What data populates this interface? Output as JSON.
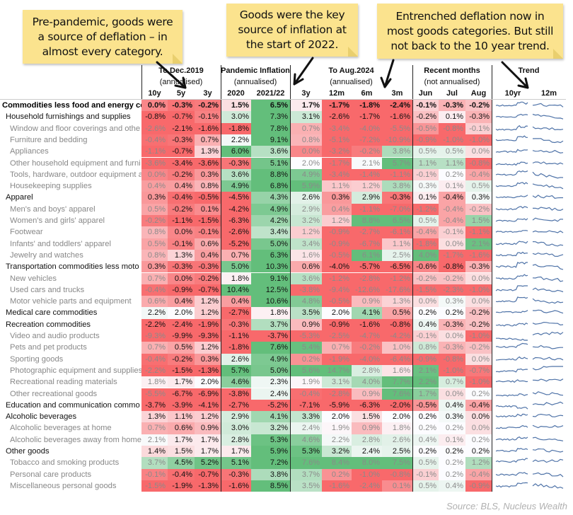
{
  "notes": [
    "Pre-pandemic, goods were a source of deflation – in almost every category.",
    "Goods were the key source of inflation at the start of 2022.",
    "Entrenched deflation now in most goods categories. But still not back to the 10 year trend."
  ],
  "chart_data": {
    "type": "table",
    "title": "",
    "groups": [
      {
        "title": "To Dec.2019",
        "subtitle": "(annualised)"
      },
      {
        "title": "Pandemic Inflation",
        "subtitle": "(annualised)"
      },
      {
        "title": "To Aug.2024",
        "subtitle": "(annualised)"
      },
      {
        "title": "Recent months",
        "subtitle": "(not annualised)"
      },
      {
        "title": "Trend",
        "subtitle": ""
      }
    ],
    "columns": [
      "10y",
      "5y",
      "3y",
      "2020",
      "2021/22",
      "3y",
      "12m",
      "6m",
      "3m",
      "Jun",
      "Jul",
      "Aug"
    ],
    "trend_columns": [
      "10yr",
      "12m"
    ],
    "unit": "%",
    "rows": [
      {
        "label": "Commodities less food and energy comm",
        "level": 0,
        "values": [
          0.0,
          -0.3,
          -0.2,
          1.5,
          6.5,
          1.7,
          -1.7,
          -1.8,
          -2.4,
          -0.1,
          -0.3,
          -0.2
        ]
      },
      {
        "label": "Household furnishings and supplies",
        "level": 1,
        "values": [
          -0.8,
          -0.7,
          -0.1,
          3.0,
          7.3,
          3.1,
          -2.6,
          -1.7,
          -1.6,
          -0.2,
          0.1,
          -0.3
        ]
      },
      {
        "label": "Window and floor coverings and othe",
        "level": 2,
        "values": [
          -2.6,
          -2.1,
          -1.6,
          -1.8,
          7.8,
          0.7,
          -3.4,
          -4.0,
          -5.5,
          -0.5,
          -0.8,
          -0.1
        ]
      },
      {
        "label": "Furniture and bedding",
        "level": 2,
        "values": [
          -0.4,
          -0.3,
          0.7,
          2.2,
          9.1,
          0.8,
          -5.1,
          -7.2,
          -10.9,
          -0.9,
          -1.0,
          -1.0
        ]
      },
      {
        "label": "Appliances",
        "level": 2,
        "values": [
          -1.1,
          -0.7,
          1.3,
          6.0,
          3.6,
          0.0,
          -3.2,
          -0.2,
          3.8,
          0.5,
          0.5,
          0.0
        ]
      },
      {
        "label": "Other household equipment and furni",
        "level": 2,
        "values": [
          -3.6,
          -3.4,
          -3.6,
          -0.3,
          5.1,
          2.0,
          -1.7,
          2.1,
          5.7,
          1.1,
          1.1,
          -0.8
        ]
      },
      {
        "label": "Tools, hardware, outdoor equipment a",
        "level": 2,
        "values": [
          0.0,
          -0.2,
          0.3,
          3.6,
          8.8,
          4.9,
          -3.4,
          -1.4,
          -1.1,
          -0.1,
          0.2,
          -0.4
        ]
      },
      {
        "label": "Housekeeping supplies",
        "level": 2,
        "values": [
          0.4,
          0.4,
          0.8,
          4.9,
          6.8,
          5.9,
          1.1,
          1.2,
          3.8,
          0.3,
          0.1,
          0.5
        ]
      },
      {
        "label": "Apparel",
        "level": 1,
        "values": [
          0.3,
          -0.4,
          -0.5,
          -4.5,
          4.3,
          2.6,
          0.3,
          2.9,
          -0.3,
          0.1,
          -0.4,
          0.3
        ]
      },
      {
        "label": "Men's and boys' apparel",
        "level": 2,
        "values": [
          0.5,
          -0.2,
          0.1,
          -4.2,
          4.9,
          2.9,
          0.4,
          -1.1,
          -7.0,
          -1.2,
          -0.4,
          -0.2
        ]
      },
      {
        "label": "Women's and girls' apparel",
        "level": 2,
        "values": [
          -0.2,
          -1.1,
          -1.5,
          -6.3,
          4.2,
          3.2,
          1.2,
          8.8,
          6.5,
          0.5,
          -0.4,
          1.5
        ]
      },
      {
        "label": "Footwear",
        "level": 2,
        "values": [
          0.8,
          0.0,
          -0.1,
          -2.6,
          3.4,
          1.2,
          -0.9,
          -2.7,
          -6.1,
          -0.4,
          -0.1,
          -1.1
        ]
      },
      {
        "label": "Infants' and toddlers' apparel",
        "level": 2,
        "values": [
          0.5,
          -0.1,
          0.6,
          -5.2,
          5.0,
          3.4,
          -0.9,
          -6.7,
          1.1,
          -1.8,
          0.0,
          2.1
        ]
      },
      {
        "label": "Jewelry and watches",
        "level": 2,
        "values": [
          0.8,
          1.3,
          0.4,
          0.7,
          6.3,
          1.6,
          -0.5,
          6.1,
          2.5,
          4.0,
          -1.7,
          -1.6
        ]
      },
      {
        "label": "Transportation commodities less moto",
        "level": 1,
        "values": [
          0.3,
          -0.3,
          -0.3,
          5.0,
          10.3,
          0.6,
          -4.0,
          -5.7,
          -6.5,
          -0.6,
          -0.8,
          -0.3
        ]
      },
      {
        "label": "New vehicles",
        "level": 2,
        "values": [
          0.7,
          0.0,
          -0.2,
          1.8,
          9.1,
          3.6,
          -1.2,
          -2.8,
          -1.2,
          -0.2,
          -0.2,
          0.0
        ]
      },
      {
        "label": "Used cars and trucks",
        "level": 2,
        "values": [
          -0.4,
          -0.9,
          -0.7,
          10.4,
          12.5,
          -3.8,
          -9.4,
          -12.6,
          -17.6,
          -1.5,
          -2.3,
          -1.0
        ]
      },
      {
        "label": "Motor vehicle parts and equipment",
        "level": 2,
        "values": [
          0.6,
          0.4,
          1.2,
          0.4,
          10.6,
          4.8,
          -0.5,
          0.9,
          1.3,
          0.0,
          0.3,
          0.0
        ]
      },
      {
        "label": "Medical care commodities",
        "level": 1,
        "values": [
          2.2,
          2.0,
          1.2,
          -2.7,
          1.8,
          3.5,
          2.0,
          4.1,
          0.5,
          0.2,
          0.2,
          -0.2
        ]
      },
      {
        "label": "Recreation commodities",
        "level": 1,
        "values": [
          -2.2,
          -2.4,
          -1.9,
          -0.3,
          3.7,
          0.9,
          -0.9,
          -1.6,
          -0.8,
          0.4,
          -0.3,
          -0.2
        ]
      },
      {
        "label": "Video and audio products",
        "level": 2,
        "values": [
          -9.3,
          -9.9,
          -9.3,
          -1.1,
          -3.7,
          -5.3,
          -2.5,
          -4.7,
          -4.2,
          -0.1,
          0.0,
          -1.0
        ]
      },
      {
        "label": "Pets and pet products",
        "level": 2,
        "values": [
          0.7,
          0.5,
          1.2,
          -1.8,
          7.6,
          5.4,
          0.7,
          -0.2,
          1.0,
          0.8,
          -0.3,
          -0.2
        ]
      },
      {
        "label": "Sporting goods",
        "level": 2,
        "values": [
          -0.4,
          -0.2,
          0.3,
          2.6,
          4.9,
          0.2,
          -1.9,
          -4.0,
          -6.4,
          -0.9,
          -0.8,
          0.0
        ]
      },
      {
        "label": "Photographic equipment and supplies",
        "level": 2,
        "values": [
          -2.2,
          -1.5,
          -1.3,
          5.7,
          5.0,
          5.6,
          14.7,
          2.8,
          1.6,
          2.1,
          -1.0,
          -0.7
        ]
      },
      {
        "label": "Recreational reading materials",
        "level": 2,
        "values": [
          1.8,
          1.7,
          2.0,
          4.6,
          2.3,
          1.9,
          3.1,
          4.0,
          7.7,
          2.2,
          0.7,
          -1.0
        ]
      },
      {
        "label": "Other recreational goods",
        "level": 2,
        "values": [
          -5.5,
          -6.7,
          -6.9,
          -3.8,
          2.4,
          -0.4,
          -2.8,
          0.9,
          7.6,
          1.7,
          0.0,
          0.2
        ]
      },
      {
        "label": "Education and communication commo",
        "level": 1,
        "values": [
          -3.7,
          -3.9,
          -4.1,
          -2.7,
          -5.2,
          -7.1,
          -5.9,
          -6.3,
          -2.0,
          -0.5,
          0.4,
          -0.4
        ]
      },
      {
        "label": "Alcoholic beverages",
        "level": 1,
        "values": [
          1.3,
          1.1,
          1.2,
          2.9,
          4.1,
          3.3,
          2.0,
          1.5,
          2.0,
          0.2,
          0.3,
          0.0
        ]
      },
      {
        "label": "Alcoholic beverages at home",
        "level": 2,
        "values": [
          0.7,
          0.6,
          0.9,
          3.0,
          3.2,
          2.4,
          1.9,
          0.9,
          1.8,
          0.2,
          0.2,
          0.0
        ]
      },
      {
        "label": "Alcoholic beverages away from home",
        "level": 2,
        "values": [
          2.1,
          1.7,
          1.7,
          2.8,
          5.3,
          4.6,
          2.2,
          2.8,
          2.6,
          0.4,
          0.1,
          0.2
        ]
      },
      {
        "label": "Other goods",
        "level": 1,
        "values": [
          1.4,
          1.5,
          1.7,
          1.7,
          5.9,
          5.3,
          3.2,
          2.4,
          2.5,
          0.2,
          0.2,
          0.2
        ]
      },
      {
        "label": "Tobacco and smoking products",
        "level": 2,
        "values": [
          3.7,
          4.5,
          5.2,
          5.1,
          7.2,
          7.6,
          8.4,
          8.0,
          7.5,
          0.5,
          0.2,
          1.2
        ]
      },
      {
        "label": "Personal care products",
        "level": 2,
        "values": [
          -0.1,
          -0.4,
          -0.7,
          -0.3,
          3.8,
          3.7,
          0.2,
          -1.0,
          -0.8,
          -0.1,
          0.2,
          -0.4
        ]
      },
      {
        "label": "Miscellaneous personal goods",
        "level": 2,
        "values": [
          -1.5,
          -1.9,
          -1.3,
          -1.6,
          8.5,
          3.5,
          -1.6,
          -2.4,
          0.1,
          0.5,
          0.4,
          -0.9
        ]
      }
    ]
  },
  "colors": {
    "negative": "#f8696b",
    "neutral": "#fcfcff",
    "positive": "#63be7b",
    "sparkline": "#4f73a8",
    "note": "#fbe38e"
  },
  "source": "Source: BLS, Nucleus Wealth"
}
